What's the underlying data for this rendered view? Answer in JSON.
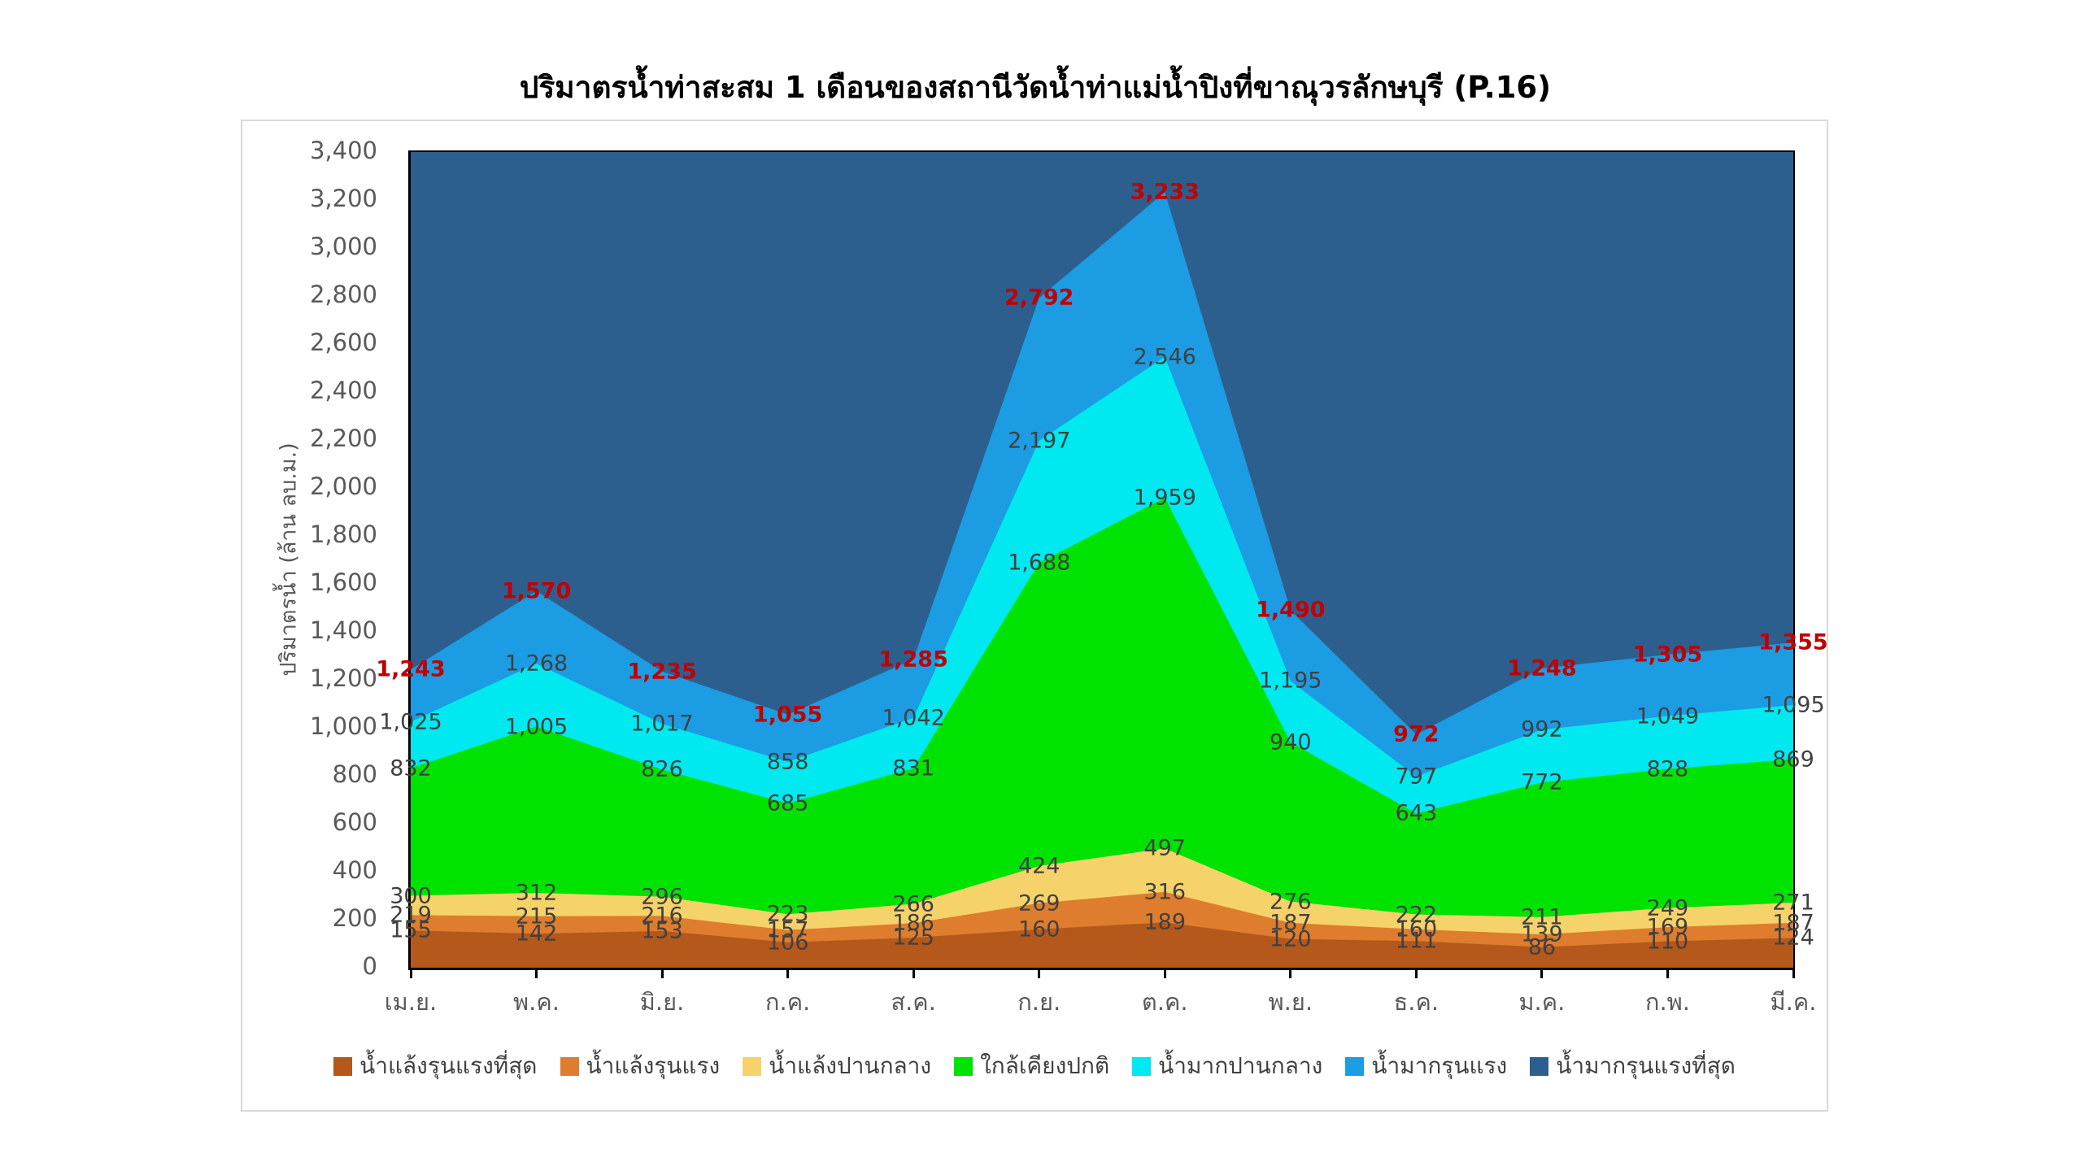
{
  "title": "ปริมาตรน้ำท่าสะสม 1 เดือนของสถานีวัดน้ำท่าแม่น้ำปิงที่ขาณุวรลักษบุรี (P.16)",
  "chart_data": {
    "type": "area",
    "title": "ปริมาตรน้ำท่าสะสม 1 เดือนของสถานีวัดน้ำท่าแม่น้ำปิงที่ขาณุวรลักษบุรี (P.16)",
    "xlabel": "",
    "ylabel": "ปริมาตรน้ำ (ล้าน ลบ.ม.)",
    "ylim": [
      0,
      3400
    ],
    "ytick_step": 200,
    "grid": false,
    "legend_position": "bottom",
    "categories": [
      "เม.ย.",
      "พ.ค.",
      "มิ.ย.",
      "ก.ค.",
      "ส.ค.",
      "ก.ย.",
      "ต.ค.",
      "พ.ย.",
      "ธ.ค.",
      "ม.ค.",
      "ก.พ.",
      "มี.ค."
    ],
    "series": [
      {
        "name": "น้ำแล้งรุนแรงที่สุด",
        "color": "#B4581C",
        "label_color": "#404040",
        "label_bold": false,
        "values": [
          155,
          142,
          153,
          106,
          125,
          160,
          189,
          120,
          111,
          86,
          110,
          124
        ]
      },
      {
        "name": "น้ำแล้งรุนแรง",
        "color": "#DE7D2D",
        "label_color": "#404040",
        "label_bold": false,
        "values": [
          219,
          215,
          216,
          157,
          186,
          269,
          316,
          187,
          160,
          139,
          169,
          187
        ]
      },
      {
        "name": "น้ำแล้งปานกลาง",
        "color": "#F6D36A",
        "label_color": "#404040",
        "label_bold": false,
        "values": [
          300,
          312,
          296,
          223,
          266,
          424,
          497,
          276,
          222,
          211,
          249,
          271
        ]
      },
      {
        "name": "ใกล้เคียงปกติ",
        "color": "#00E300",
        "label_color": "#404040",
        "label_bold": false,
        "values": [
          832,
          1005,
          826,
          685,
          831,
          1688,
          1959,
          940,
          643,
          772,
          828,
          869
        ]
      },
      {
        "name": "น้ำมากปานกลาง",
        "color": "#00E8F0",
        "label_color": "#404040",
        "label_bold": false,
        "values": [
          1025,
          1268,
          1017,
          858,
          1042,
          2197,
          2546,
          1195,
          797,
          992,
          1049,
          1095
        ]
      },
      {
        "name": "น้ำมากรุนแรง",
        "color": "#1C9CE2",
        "label_color": "#C00000",
        "label_bold": true,
        "values": [
          1243,
          1570,
          1235,
          1055,
          1285,
          2792,
          3233,
          1490,
          972,
          1248,
          1305,
          1355
        ]
      },
      {
        "name": "น้ำมากรุนแรงที่สุด",
        "color": "#2D5F8E",
        "label_color": null,
        "label_bold": false,
        "values": null
      }
    ]
  }
}
